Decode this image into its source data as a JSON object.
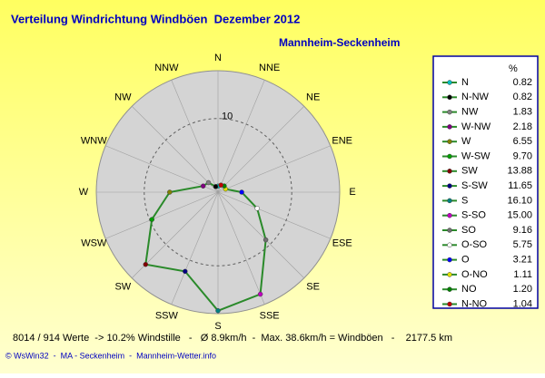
{
  "chart_data": {
    "type": "radar",
    "title": "Verteilung Windrichtung Windböen  Dezember 2012",
    "subtitle": "Mannheim-Seckenheim",
    "directions": [
      "N",
      "NNE",
      "NE",
      "ENE",
      "E",
      "ESE",
      "SE",
      "SSE",
      "S",
      "SSW",
      "SW",
      "WSW",
      "W",
      "WNW",
      "NW",
      "NNW"
    ],
    "legend_header": "%",
    "categories": [
      "N",
      "N-NW",
      "NW",
      "W-NW",
      "W",
      "W-SW",
      "SW",
      "S-SW",
      "S",
      "S-SO",
      "SO",
      "O-SO",
      "O",
      "O-NO",
      "NO",
      "N-NO"
    ],
    "values": [
      0.82,
      0.82,
      1.83,
      2.18,
      6.55,
      9.7,
      13.88,
      11.65,
      16.1,
      15.0,
      9.16,
      5.75,
      3.21,
      1.11,
      1.2,
      1.04
    ],
    "value_labels": [
      "0.82",
      "0.82",
      "1.83",
      "2.18",
      "6.55",
      "9.70",
      "13.88",
      "11.65",
      "16.10",
      "15.00",
      "9.16",
      "5.75",
      "3.21",
      "1.11",
      "1.20",
      "1.04"
    ],
    "colors": [
      "#00c0c0",
      "#000000",
      "#808080",
      "#800080",
      "#808000",
      "#00a000",
      "#800000",
      "#000080",
      "#008080",
      "#c000c0",
      "#707070",
      "#ffffff",
      "#0000ff",
      "#e0e000",
      "#008000",
      "#c00000"
    ],
    "line_color": "#2a8a2a",
    "rlim": [
      0,
      16.5
    ],
    "rticks": [
      10
    ],
    "grid": true,
    "footer": "8014 / 914 Werte  -> 10.2% Windstille   -   Ø 8.9km/h  -  Max. 38.6km/h = Windböen   -    2177.5 km",
    "credits": "© WsWin32  -  MA - Seckenheim  -  Mannheim-Wetter.info"
  }
}
